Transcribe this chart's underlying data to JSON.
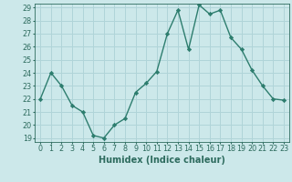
{
  "x": [
    0,
    1,
    2,
    3,
    4,
    5,
    6,
    7,
    8,
    9,
    10,
    11,
    12,
    13,
    14,
    15,
    16,
    17,
    18,
    19,
    20,
    21,
    22,
    23
  ],
  "y": [
    22,
    24,
    23,
    21.5,
    21,
    19.2,
    19,
    20,
    20.5,
    22.5,
    23.2,
    24.1,
    27,
    28.8,
    25.8,
    29.2,
    28.5,
    28.8,
    26.7,
    25.8,
    24.2,
    23,
    22,
    21.9
  ],
  "line_color": "#2d7d6e",
  "marker": "D",
  "marker_size": 2.2,
  "bg_color": "#cce8ea",
  "grid_color": "#b0d4d8",
  "xlabel": "Humidex (Indice chaleur)",
  "ylim_min": 19,
  "ylim_max": 29,
  "yticks": [
    19,
    20,
    21,
    22,
    23,
    24,
    25,
    26,
    27,
    28,
    29
  ],
  "xticks": [
    0,
    1,
    2,
    3,
    4,
    5,
    6,
    7,
    8,
    9,
    10,
    11,
    12,
    13,
    14,
    15,
    16,
    17,
    18,
    19,
    20,
    21,
    22,
    23
  ],
  "tick_color": "#2d6b5e",
  "xlabel_fontsize": 7.0,
  "tick_fontsize": 5.8,
  "linewidth": 1.0
}
